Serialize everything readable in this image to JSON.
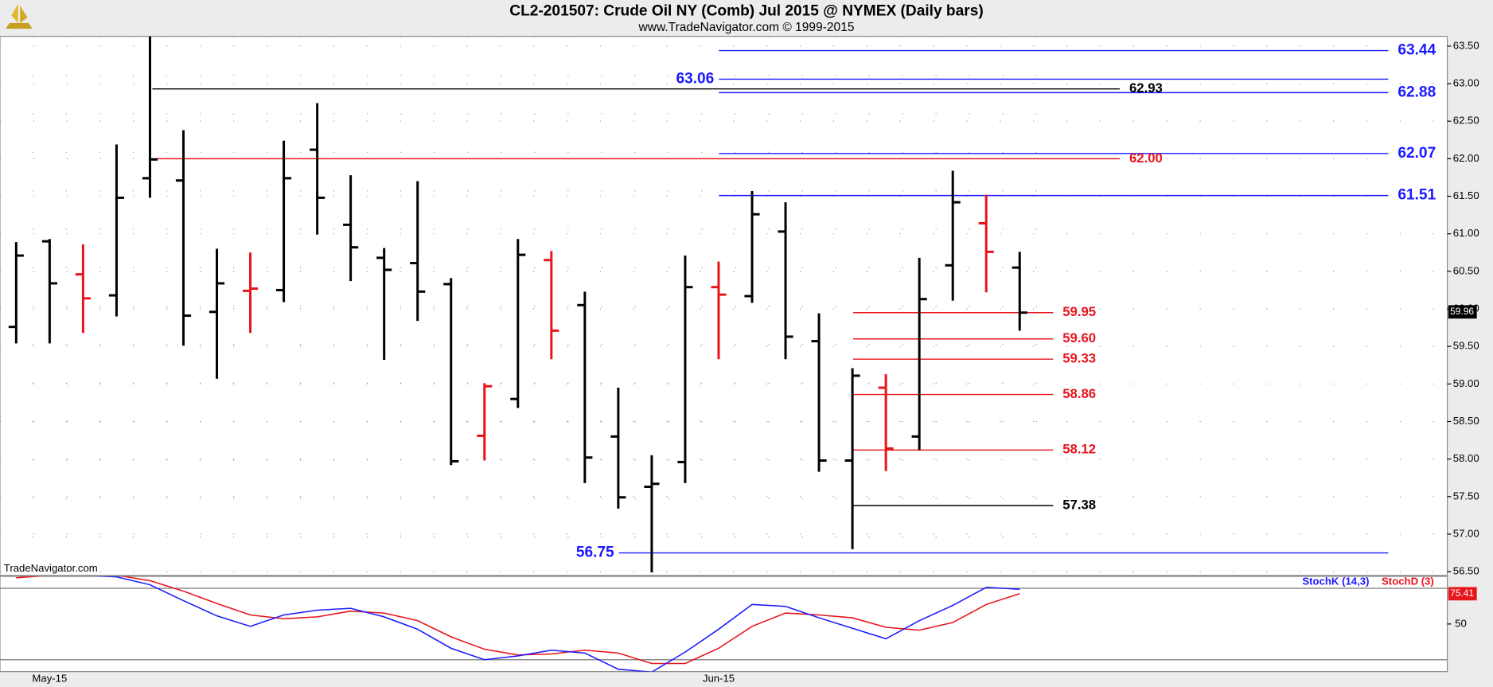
{
  "chart_data": [
    {
      "type": "ohlc",
      "title": "CL2-201507:  Crude Oil NY (Comb) Jul 2015 @ NYMEX  (Daily bars)",
      "subtitle": "www.TradeNavigator.com © 1999-2015",
      "watermark": "TradeNavigator.com",
      "categories": [
        null,
        "May-15",
        null,
        null,
        null,
        null,
        null,
        null,
        null,
        null,
        null,
        null,
        null,
        null,
        null,
        null,
        null,
        null,
        null,
        null,
        null,
        "Jun-15",
        null,
        null,
        null,
        null,
        null,
        null,
        null,
        null,
        null
      ],
      "open": [
        59.76,
        60.9,
        60.46,
        60.18,
        61.74,
        61.71,
        59.96,
        60.24,
        60.25,
        62.12,
        61.12,
        60.68,
        60.61,
        60.33,
        58.31,
        58.8,
        60.65,
        60.05,
        58.3,
        57.63,
        57.96,
        60.29,
        60.17,
        61.03,
        59.57,
        57.98,
        58.95,
        58.3,
        60.58,
        61.14,
        60.55
      ],
      "high": [
        60.89,
        60.93,
        60.86,
        62.19,
        63.63,
        62.38,
        60.8,
        60.75,
        62.24,
        62.74,
        61.78,
        60.81,
        61.7,
        60.41,
        59.01,
        60.93,
        60.77,
        60.23,
        58.95,
        58.05,
        60.71,
        60.63,
        61.57,
        61.42,
        59.94,
        59.21,
        59.13,
        60.68,
        61.84,
        61.52,
        60.76
      ],
      "low": [
        59.54,
        59.54,
        59.68,
        59.9,
        61.48,
        59.51,
        59.07,
        59.68,
        60.09,
        60.99,
        60.37,
        59.32,
        59.84,
        57.92,
        57.98,
        58.68,
        59.33,
        57.68,
        57.34,
        56.49,
        57.68,
        59.33,
        60.08,
        59.33,
        57.83,
        56.8,
        57.84,
        58.12,
        60.11,
        60.22,
        59.71
      ],
      "close": [
        60.71,
        60.34,
        60.14,
        61.48,
        61.99,
        59.91,
        60.34,
        60.27,
        61.74,
        61.48,
        60.82,
        60.52,
        60.23,
        57.97,
        58.97,
        60.72,
        59.71,
        58.02,
        57.49,
        57.67,
        60.29,
        60.19,
        61.26,
        59.63,
        57.98,
        59.11,
        58.14,
        60.13,
        61.42,
        60.76,
        59.95
      ],
      "colors": [
        "#000000",
        "#000000",
        "#e8141c",
        "#000000",
        "#000000",
        "#000000",
        "#000000",
        "#e8141c",
        "#000000",
        "#000000",
        "#000000",
        "#000000",
        "#000000",
        "#000000",
        "#e8141c",
        "#000000",
        "#e8141c",
        "#000000",
        "#000000",
        "#000000",
        "#000000",
        "#e8141c",
        "#000000",
        "#000000",
        "#000000",
        "#000000",
        "#e8141c",
        "#000000",
        "#000000",
        "#e8141c",
        "#000000"
      ],
      "ylim": [
        56.45,
        63.63
      ],
      "yticks": [
        {
          "value": 56.5,
          "label": "56.50"
        },
        {
          "value": 57,
          "label": "57.00"
        },
        {
          "value": 57.5,
          "label": "57.50"
        },
        {
          "value": 58,
          "label": "58.00"
        },
        {
          "value": 58.5,
          "label": "58.50"
        },
        {
          "value": 59,
          "label": "59.00"
        },
        {
          "value": 59.5,
          "label": "59.50"
        },
        {
          "value": 60,
          "label": "60.00"
        },
        {
          "value": 60.5,
          "label": "60.50"
        },
        {
          "value": 61,
          "label": "61.00"
        },
        {
          "value": 61.5,
          "label": "61.50"
        },
        {
          "value": 62,
          "label": "62.00"
        },
        {
          "value": 62.5,
          "label": "62.50"
        },
        {
          "value": 63,
          "label": "63.00"
        },
        {
          "value": 63.5,
          "label": "63.50"
        }
      ],
      "grid": true,
      "levels": [
        {
          "value": 63.44,
          "color": "#1a1aff"
        },
        {
          "value": 63.06,
          "color": "#1a1aff"
        },
        {
          "value": 62.93,
          "color": "#000000"
        },
        {
          "value": 62.88,
          "color": "#1a1aff"
        },
        {
          "value": 62.07,
          "color": "#1a1aff"
        },
        {
          "value": 62,
          "label": "62.00",
          "color": "#e8141c"
        },
        {
          "value": 61.51,
          "color": "#1a1aff"
        },
        {
          "value": 59.95,
          "color": "#e8141c"
        },
        {
          "value": 59.6,
          "label": "59.60",
          "color": "#e8141c"
        },
        {
          "value": 59.33,
          "color": "#e8141c"
        },
        {
          "value": 58.86,
          "color": "#e8141c"
        },
        {
          "value": 58.12,
          "color": "#e8141c"
        },
        {
          "value": 57.38,
          "color": "#000000"
        },
        {
          "value": 56.75,
          "color": "#1a1aff"
        }
      ],
      "last_price": 59.96
    },
    {
      "type": "line",
      "series": [
        {
          "name": "StochD (3)",
          "color": "#e8141c",
          "values": [
            88.8,
            91,
            91.5,
            91,
            86.4,
            77.6,
            67.2,
            57.6,
            54.4,
            56,
            60.8,
            59.2,
            52.8,
            39.2,
            28.8,
            24,
            24.8,
            28,
            25.6,
            16.8,
            16.8,
            29.6,
            48,
            59.2,
            57.6,
            55.2,
            47.2,
            44.8,
            51.2,
            66.4,
            75.41
          ]
        },
        {
          "name": "StochK (14,3)",
          "color": "#1a1aff",
          "values": [
            91,
            93.6,
            91,
            89.6,
            83,
            69.6,
            56.8,
            48,
            57.6,
            61.6,
            63.2,
            56,
            45.6,
            29.6,
            20,
            23.2,
            28,
            25.6,
            12,
            9.6,
            26.4,
            45.6,
            66.4,
            64.8,
            55.2,
            46.4,
            37.6,
            52.8,
            65.6,
            80.8,
            79.2
          ]
        }
      ],
      "ylim": [
        10,
        90
      ],
      "yticks": [
        50
      ],
      "bands": [
        20,
        80
      ]
    }
  ]
}
